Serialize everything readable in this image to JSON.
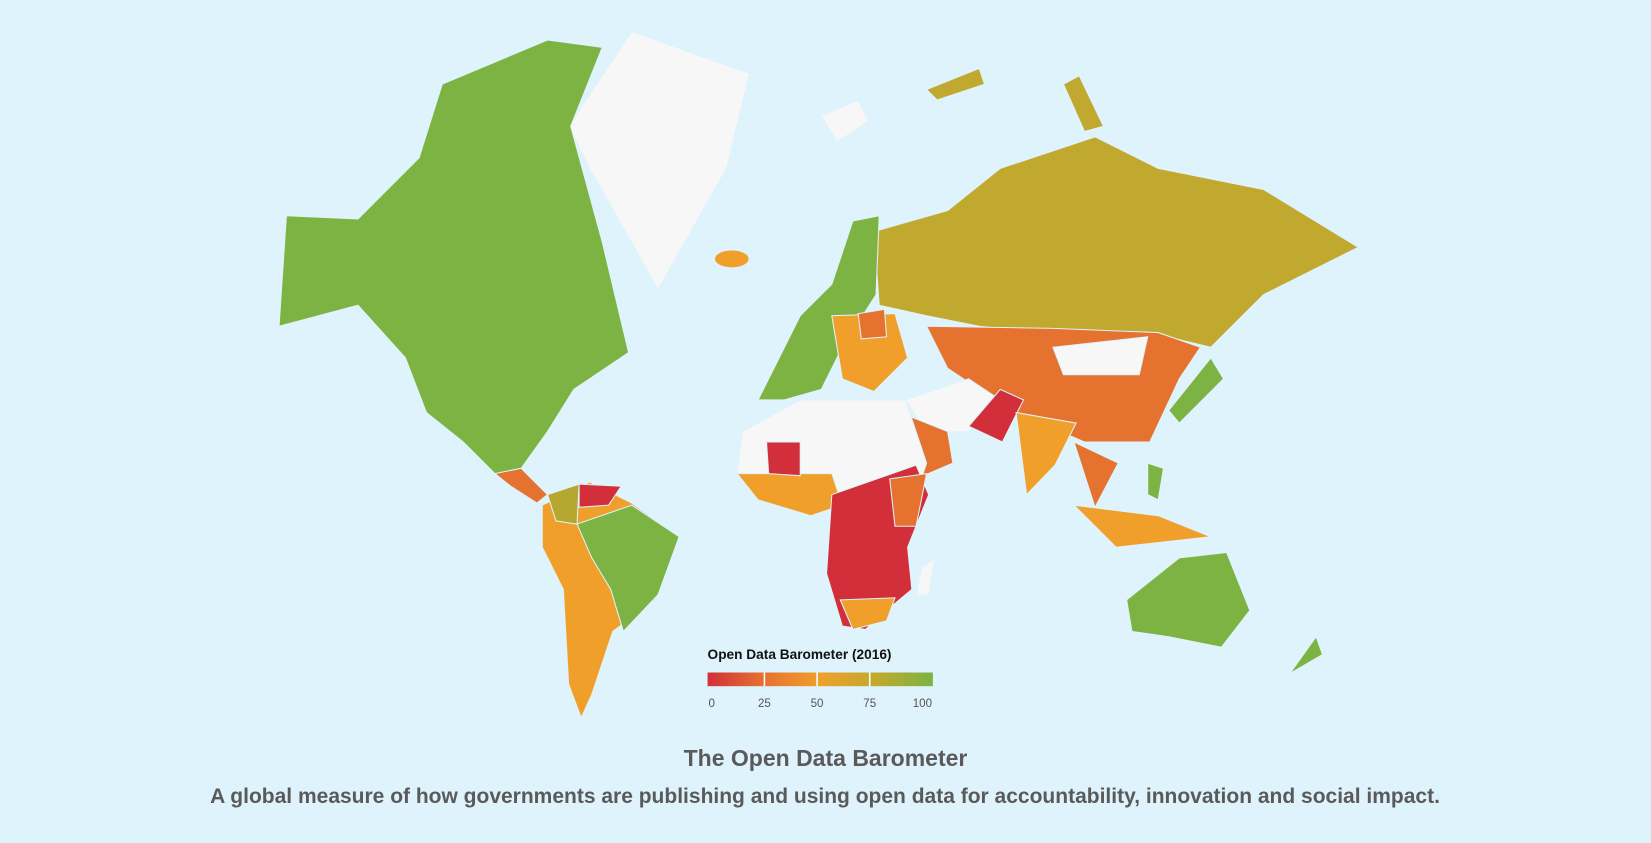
{
  "header": {
    "title": "The Open Data Barometer",
    "subtitle": "A global measure of how governments are publishing and using open data for accountability, innovation and social impact."
  },
  "legend": {
    "title": "Open Data Barometer (2016)",
    "range": [
      0,
      100
    ],
    "ticks": [
      0,
      25,
      50,
      75,
      100
    ],
    "colors": [
      "#d32f3a",
      "#e5722f",
      "#f0a02a",
      "#c0a92e",
      "#7cb342"
    ]
  }
}
